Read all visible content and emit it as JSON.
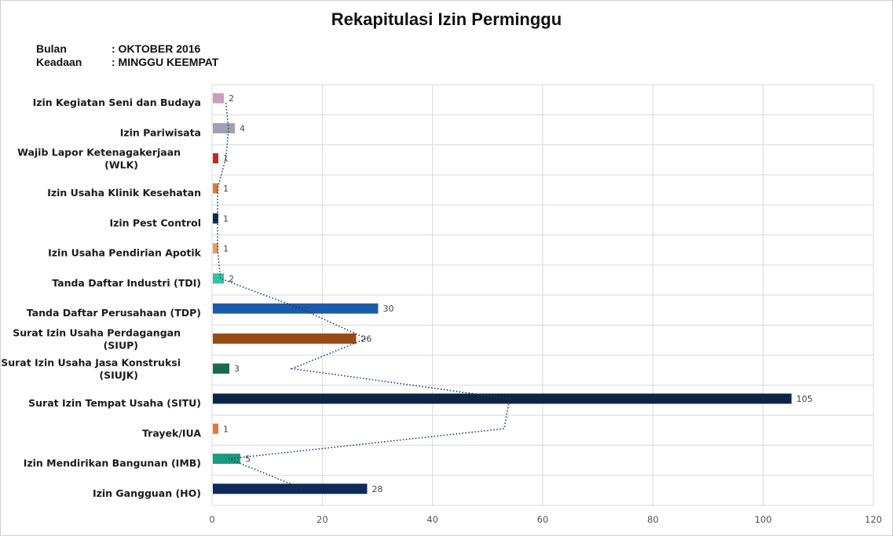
{
  "header": {
    "title": "Rekapitulasi Izin Perminggu",
    "bulan_label": "Bulan",
    "bulan_value": ": OKTOBER 2016",
    "keadaan_label": "Keadaan",
    "keadaan_value": ": MINGGU KEEMPAT"
  },
  "chart_data": {
    "type": "bar",
    "orientation": "horizontal",
    "title": "Rekapitulasi Izin Perminggu",
    "xlabel": "",
    "ylabel": "",
    "xlim": [
      0,
      120
    ],
    "xticks": [
      0,
      20,
      40,
      60,
      80,
      100,
      120
    ],
    "grid": true,
    "trendline": "dotted moving average",
    "categories": [
      "Izin Kegiatan Seni dan Budaya",
      "Izin Pariwisata",
      "Wajib Lapor Ketenagakerjaan (WLK)",
      "Izin Usaha Klinik Kesehatan",
      "Izin Pest Control",
      "Izin Usaha Pendirian Apotik",
      "Tanda Daftar Industri (TDI)",
      "Tanda Daftar Perusahaan (TDP)",
      "Surat Izin Usaha Perdagangan (SIUP)",
      "Surat Izin Usaha Jasa Konstruksi (SIUJK)",
      "Surat Izin Tempat Usaha (SITU)",
      "Trayek/IUA",
      "Izin Mendirikan Bangunan (IMB)",
      "Izin Gangguan (HO)"
    ],
    "values": [
      2,
      4,
      1,
      1,
      1,
      1,
      2,
      30,
      26,
      3,
      105,
      1,
      5,
      28
    ],
    "colors": [
      "#c9a0bd",
      "#a0a0b0",
      "#c0282d",
      "#e07a3a",
      "#0d2a4d",
      "#e89a6a",
      "#2ec4a6",
      "#1a5aa6",
      "#9a4a14",
      "#1f6650",
      "#0d2447",
      "#e07a3a",
      "#1a9a7e",
      "#0d2a5a"
    ],
    "trendline_color": "#1f3a68"
  }
}
